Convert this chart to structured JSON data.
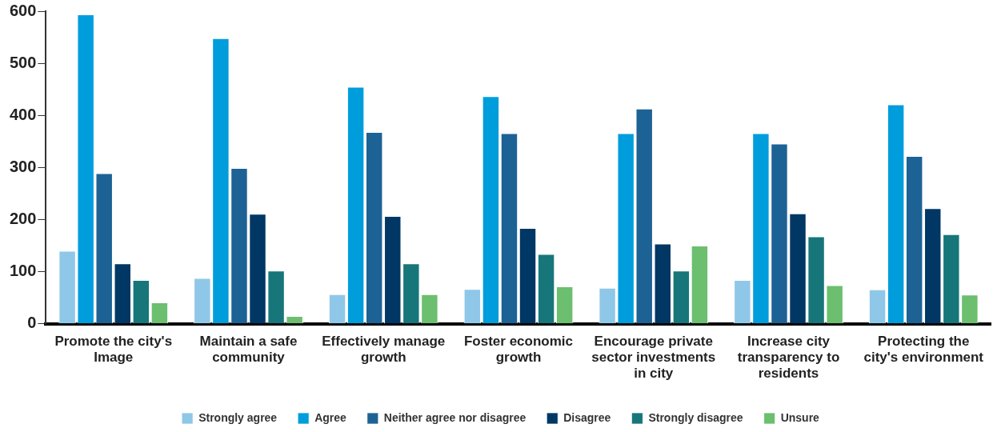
{
  "chart_data": {
    "type": "bar",
    "categories": [
      "Promote the city's Image",
      "Maintain a safe community",
      "Effectively manage growth",
      "Foster economic growth",
      "Encourage private sector investments in city",
      "Increase city transparency to residents",
      "Protecting the city's environment"
    ],
    "series": [
      {
        "name": "Strongly agree",
        "color": "#8fc7e8",
        "values": [
          140,
          88,
          57,
          67,
          69,
          84,
          66
        ]
      },
      {
        "name": "Agree",
        "color": "#009ddc",
        "values": [
          594,
          548,
          455,
          437,
          366,
          366,
          421
        ]
      },
      {
        "name": "Neither agree nor disagree",
        "color": "#1d6295",
        "values": [
          289,
          299,
          368,
          366,
          413,
          346,
          322
        ]
      },
      {
        "name": "Disagree",
        "color": "#003764",
        "values": [
          116,
          211,
          207,
          184,
          154,
          212,
          222
        ]
      },
      {
        "name": "Strongly disagree",
        "color": "#17767a",
        "values": [
          84,
          102,
          116,
          134,
          102,
          168,
          172
        ]
      },
      {
        "name": "Unsure",
        "color": "#6bbf6f",
        "values": [
          41,
          15,
          57,
          72,
          150,
          74,
          56
        ]
      }
    ],
    "ylim": [
      0,
      600
    ],
    "yticks": [
      0,
      100,
      200,
      300,
      400,
      500,
      600
    ],
    "grid": false,
    "legend": "bottom"
  }
}
